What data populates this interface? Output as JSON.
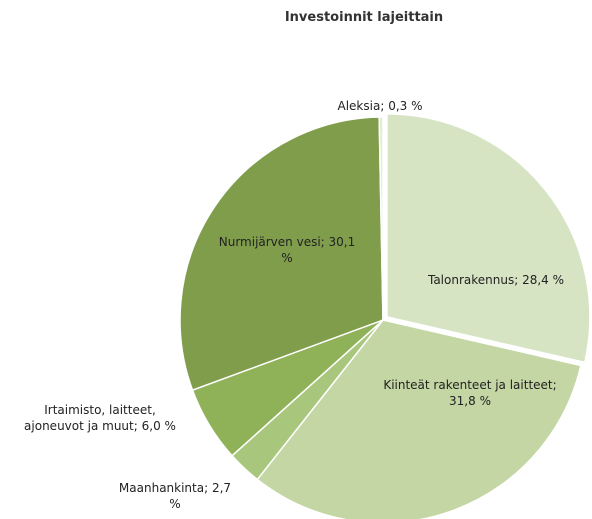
{
  "chart_data": {
    "type": "pie",
    "title": "Investoinnit lajeittain",
    "categories": [
      "Talonrakennus;",
      "Kiinteät rakenteet ja laitteet;",
      "Maanhankinta;",
      "Irtaimisto, laitteet, ajoneuvot ja muut;",
      "Nurmijärven vesi;",
      "Aleksia;"
    ],
    "values": [
      28.4,
      31.8,
      2.7,
      6.0,
      30.1,
      0.3
    ],
    "value_labels": [
      "28,4 %",
      "31,8 %",
      "2,7 %",
      "6,0 %",
      "30,1 %",
      "0,3 %"
    ],
    "colors": [
      "#d7e4c4",
      "#c3d6a3",
      "#a8c77c",
      "#8fb258",
      "#7f9d4b",
      "#e3ecd5"
    ]
  }
}
